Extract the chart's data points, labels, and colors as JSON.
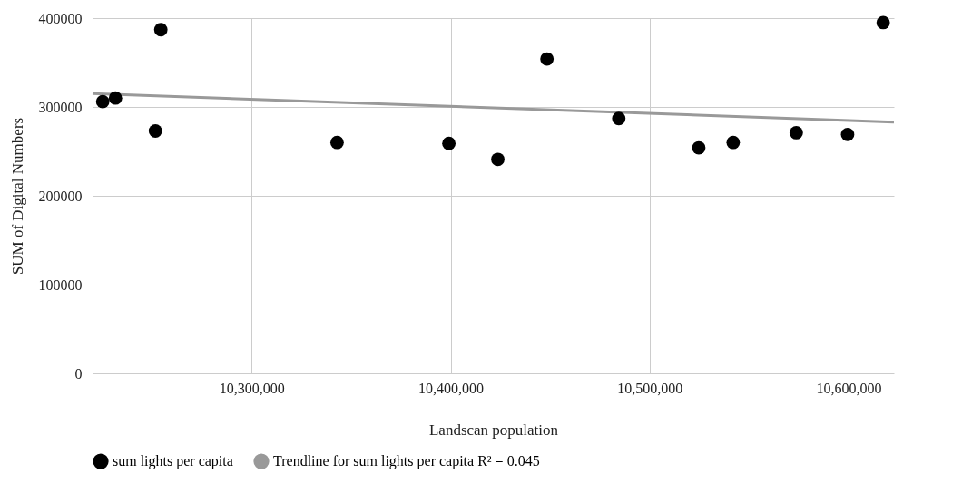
{
  "chart_data": {
    "type": "scatter",
    "xlabel": "Landscan population",
    "ylabel": "SUM of Digital Numbers",
    "xlim": [
      10220000,
      10622800
    ],
    "ylim": [
      0,
      400000
    ],
    "xticks": [
      {
        "value": 10300000,
        "label": "10,300,000"
      },
      {
        "value": 10400000,
        "label": "10,400,000"
      },
      {
        "value": 10500000,
        "label": "10,500,000"
      },
      {
        "value": 10600000,
        "label": "10,600,000"
      }
    ],
    "yticks": [
      0,
      100000,
      200000,
      300000,
      400000
    ],
    "grid": true,
    "legend": "bottom",
    "marker": "circle",
    "series": [
      {
        "name": "sum lights per capita",
        "color": "#000000",
        "x": [
          10225100,
          10231500,
          10251600,
          10254300,
          10342900,
          10399100,
          10423700,
          10448400,
          10484500,
          10524700,
          10542000,
          10573700,
          10599500,
          10617400
        ],
        "values": [
          306000,
          310000,
          273000,
          387000,
          260000,
          259000,
          241000,
          354000,
          287000,
          254000,
          260000,
          271000,
          269000,
          395000
        ]
      },
      {
        "name": "Trendline for sum lights per capita R² = 0.045",
        "color": "#999999",
        "type": "line",
        "marker": "none",
        "x": [
          10220000,
          10622800
        ],
        "values": [
          315000,
          283000
        ]
      }
    ]
  }
}
